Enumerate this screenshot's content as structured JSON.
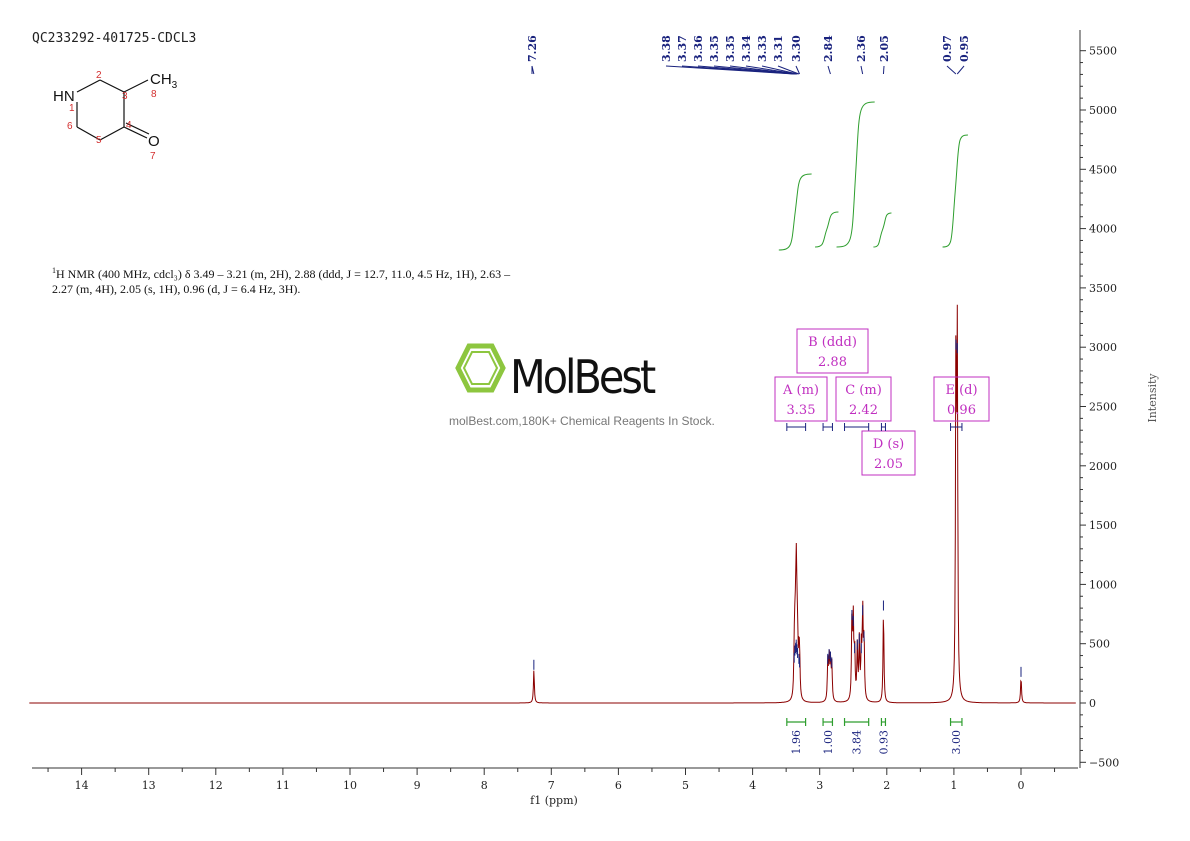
{
  "sample_id": "QC233292-401725-CDCL3",
  "structure": {
    "atom_hn": "HN",
    "atom_ch3": "CH",
    "atom_ch3_sub": "3",
    "atom_o": "O",
    "numbers": [
      "1",
      "2",
      "3",
      "4",
      "5",
      "6",
      "7",
      "8"
    ]
  },
  "nmr_description": {
    "prefix_sup": "1",
    "line1": "H NMR (400 MHz, cdcl₃) δ 3.49 – 3.21 (m, 2H), 2.88 (ddd, J = 12.7, 11.0, 4.5 Hz, 1H), 2.63 –",
    "line2": "2.27 (m, 4H), 2.05 (s, 1H), 0.96 (d, J = 6.4 Hz, 3H)."
  },
  "watermark": {
    "brand": "MolBest",
    "tagline": "molBest.com,180K+ Chemical Reagents In Stock.",
    "color": "#8dc63f"
  },
  "colors": {
    "spectrum": "#8b0000",
    "peak_label": "#1a237e",
    "integral": "#2e9e2e",
    "multiplet_box": "#c02fc0"
  },
  "chart_data": {
    "type": "line",
    "title": "",
    "xlabel": "f1 (ppm)",
    "ylabel": "Intensity",
    "xlim": [
      14.8,
      -0.85
    ],
    "ylim": [
      -520,
      5700
    ],
    "x_ticks": [
      14,
      13,
      12,
      11,
      10,
      9,
      8,
      7,
      6,
      5,
      4,
      3,
      2,
      1,
      0
    ],
    "y_ticks": [
      -500,
      0,
      500,
      1000,
      1500,
      2000,
      2500,
      3000,
      3500,
      4000,
      4500,
      5000,
      5500
    ],
    "peaks": [
      {
        "ppm": 7.26,
        "height": 280
      },
      {
        "ppm": 3.38,
        "height": 340
      },
      {
        "ppm": 3.37,
        "height": 400
      },
      {
        "ppm": 3.36,
        "height": 420
      },
      {
        "ppm": 3.35,
        "height": 450
      },
      {
        "ppm": 3.35,
        "height": 430
      },
      {
        "ppm": 3.34,
        "height": 410
      },
      {
        "ppm": 3.33,
        "height": 380
      },
      {
        "ppm": 3.31,
        "height": 330
      },
      {
        "ppm": 3.3,
        "height": 300
      },
      {
        "ppm": 2.88,
        "height": 330
      },
      {
        "ppm": 2.86,
        "height": 370
      },
      {
        "ppm": 2.84,
        "height": 350
      },
      {
        "ppm": 2.82,
        "height": 300
      },
      {
        "ppm": 2.52,
        "height": 700
      },
      {
        "ppm": 2.5,
        "height": 650
      },
      {
        "ppm": 2.48,
        "height": 420
      },
      {
        "ppm": 2.44,
        "height": 450
      },
      {
        "ppm": 2.41,
        "height": 500
      },
      {
        "ppm": 2.38,
        "height": 420
      },
      {
        "ppm": 2.36,
        "height": 740
      },
      {
        "ppm": 2.34,
        "height": 520
      },
      {
        "ppm": 2.05,
        "height": 780
      },
      {
        "ppm": 0.97,
        "height": 2980
      },
      {
        "ppm": 0.95,
        "height": 2950
      },
      {
        "ppm": 0.0,
        "height": 220
      }
    ],
    "peak_labels": [
      "7.26",
      "3.38",
      "3.37",
      "3.36",
      "3.35",
      "3.35",
      "3.34",
      "3.33",
      "3.31",
      "3.30",
      "2.84",
      "2.36",
      "2.05",
      "0.97",
      "0.95"
    ],
    "multiplets": [
      {
        "label": "A (m)",
        "shift": "3.35",
        "range": [
          3.49,
          3.21
        ]
      },
      {
        "label": "B (ddd)",
        "shift": "2.88",
        "range": [
          2.95,
          2.81
        ]
      },
      {
        "label": "C (m)",
        "shift": "2.42",
        "range": [
          2.63,
          2.27
        ]
      },
      {
        "label": "D (s)",
        "shift": "2.05",
        "range": [
          2.08,
          2.02
        ]
      },
      {
        "label": "E (d)",
        "shift": "0.96",
        "range": [
          1.05,
          0.88
        ]
      }
    ],
    "integrals": [
      {
        "value": "1.96",
        "range": [
          3.49,
          3.21
        ]
      },
      {
        "value": "1.00",
        "range": [
          2.95,
          2.81
        ]
      },
      {
        "value": "3.84",
        "range": [
          2.63,
          2.27
        ]
      },
      {
        "value": "0.93",
        "range": [
          2.08,
          2.02
        ]
      },
      {
        "value": "3.00",
        "range": [
          1.05,
          0.88
        ]
      }
    ],
    "grid": false
  }
}
